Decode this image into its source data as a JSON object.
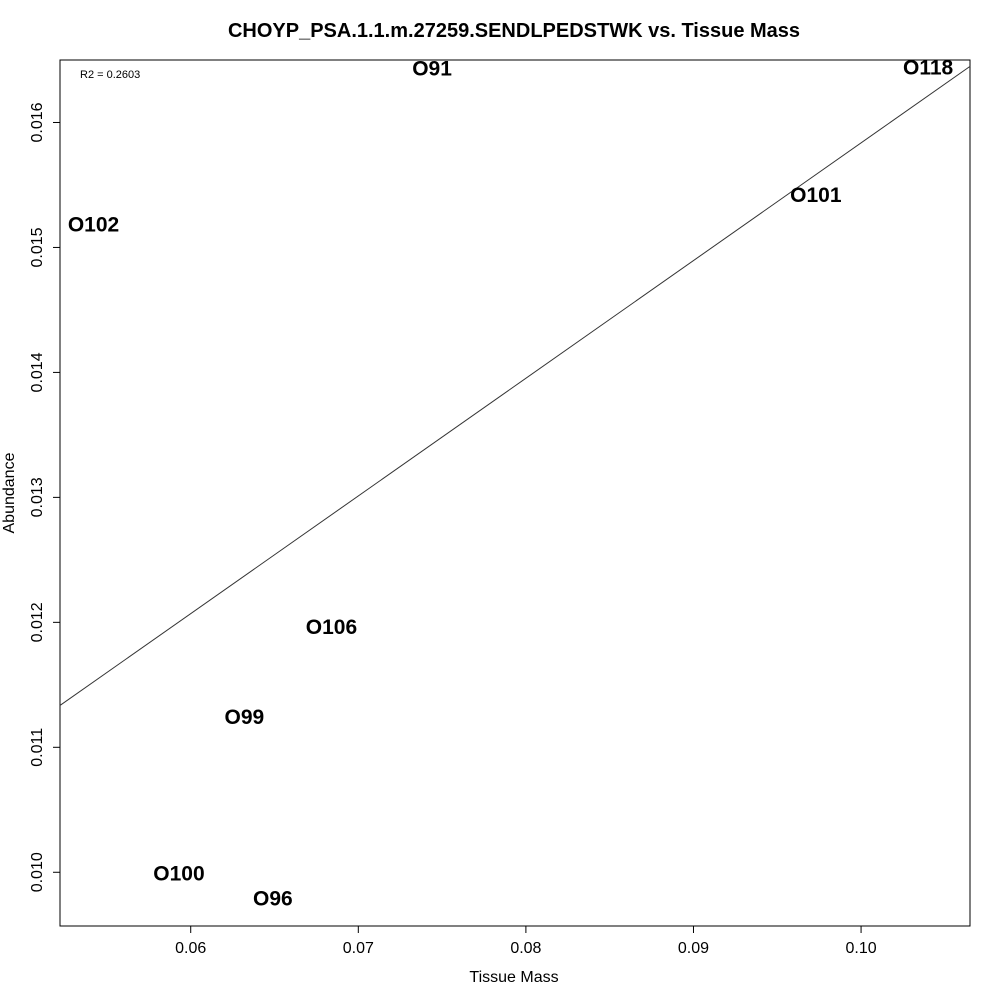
{
  "chart_data": {
    "type": "scatter",
    "title": "CHOYP_PSA.1.1.m.27259.SENDLPEDSTWK vs. Tissue Mass",
    "xlabel": "Tissue Mass",
    "ylabel": "Abundance",
    "xlim": [
      0.0522,
      0.1065
    ],
    "ylim": [
      0.00957,
      0.0165
    ],
    "x_ticks": [
      0.06,
      0.07,
      0.08,
      0.09,
      0.1
    ],
    "x_tick_labels": [
      "0.06",
      "0.07",
      "0.08",
      "0.09",
      "0.10"
    ],
    "y_ticks": [
      0.01,
      0.011,
      0.012,
      0.013,
      0.014,
      0.015,
      0.016
    ],
    "y_tick_labels": [
      "0.010",
      "0.011",
      "0.012",
      "0.013",
      "0.014",
      "0.015",
      "0.016"
    ],
    "annotation": "R2 = 0.2603",
    "points": [
      {
        "label": "O91",
        "x": 0.0744,
        "y": 0.01642
      },
      {
        "label": "O118",
        "x": 0.104,
        "y": 0.01643
      },
      {
        "label": "O101",
        "x": 0.0973,
        "y": 0.01541
      },
      {
        "label": "O102",
        "x": 0.0542,
        "y": 0.01517
      },
      {
        "label": "O106",
        "x": 0.0684,
        "y": 0.01195
      },
      {
        "label": "O99",
        "x": 0.0632,
        "y": 0.01123
      },
      {
        "label": "O100",
        "x": 0.0593,
        "y": 0.00998
      },
      {
        "label": "O96",
        "x": 0.0649,
        "y": 0.00978
      }
    ],
    "trendline": {
      "x": [
        0.0522,
        0.1065
      ],
      "y": [
        0.011335,
        0.016449
      ]
    },
    "grid": false,
    "legend": "none"
  }
}
